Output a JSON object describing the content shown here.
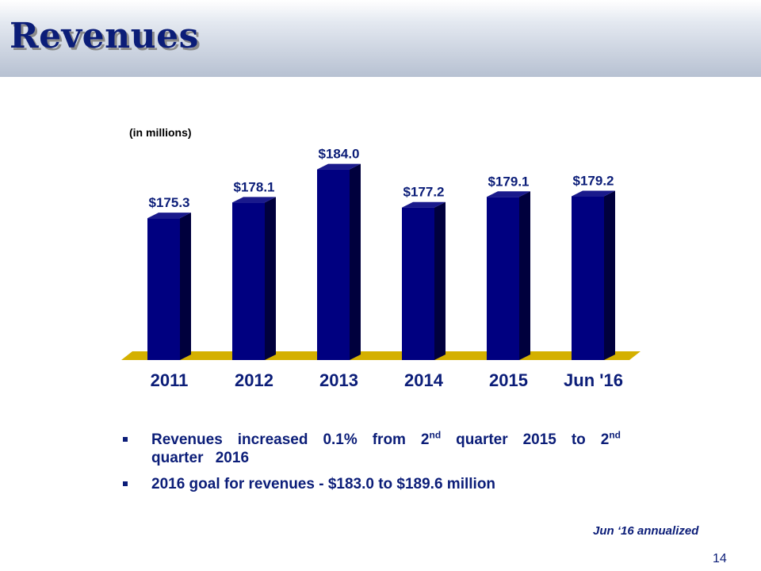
{
  "slide": {
    "title": "Revenues",
    "units_note": "(in millions)",
    "footnote": "Jun ‘16 annualized",
    "page_number": "14"
  },
  "bullets": {
    "b1_part1": "Revenues increased 0.1% from 2",
    "b1_sup1": "nd",
    "b1_part2": " quarter 2015 to 2",
    "b1_sup2": "nd",
    "b1_part3": " quarter 2016",
    "b2": "2016 goal for revenues - $183.0 to $189.6 million"
  },
  "colors": {
    "bar_front": "#000080",
    "bar_side": "#00003d",
    "bar_top": "#1a1a8c",
    "floor": "#d4b000",
    "text": "#0b1d78"
  },
  "chart_data": {
    "type": "bar",
    "categories": [
      "2011",
      "2012",
      "2013",
      "2014",
      "2015",
      "Jun '16"
    ],
    "values": [
      175.3,
      178.1,
      184.0,
      177.2,
      179.1,
      179.2
    ],
    "value_labels": [
      "$175.3",
      "$178.1",
      "$184.0",
      "$177.2",
      "$179.1",
      "$179.2"
    ],
    "title": "",
    "xlabel": "",
    "ylabel": "",
    "grid": false,
    "legend": "none"
  }
}
